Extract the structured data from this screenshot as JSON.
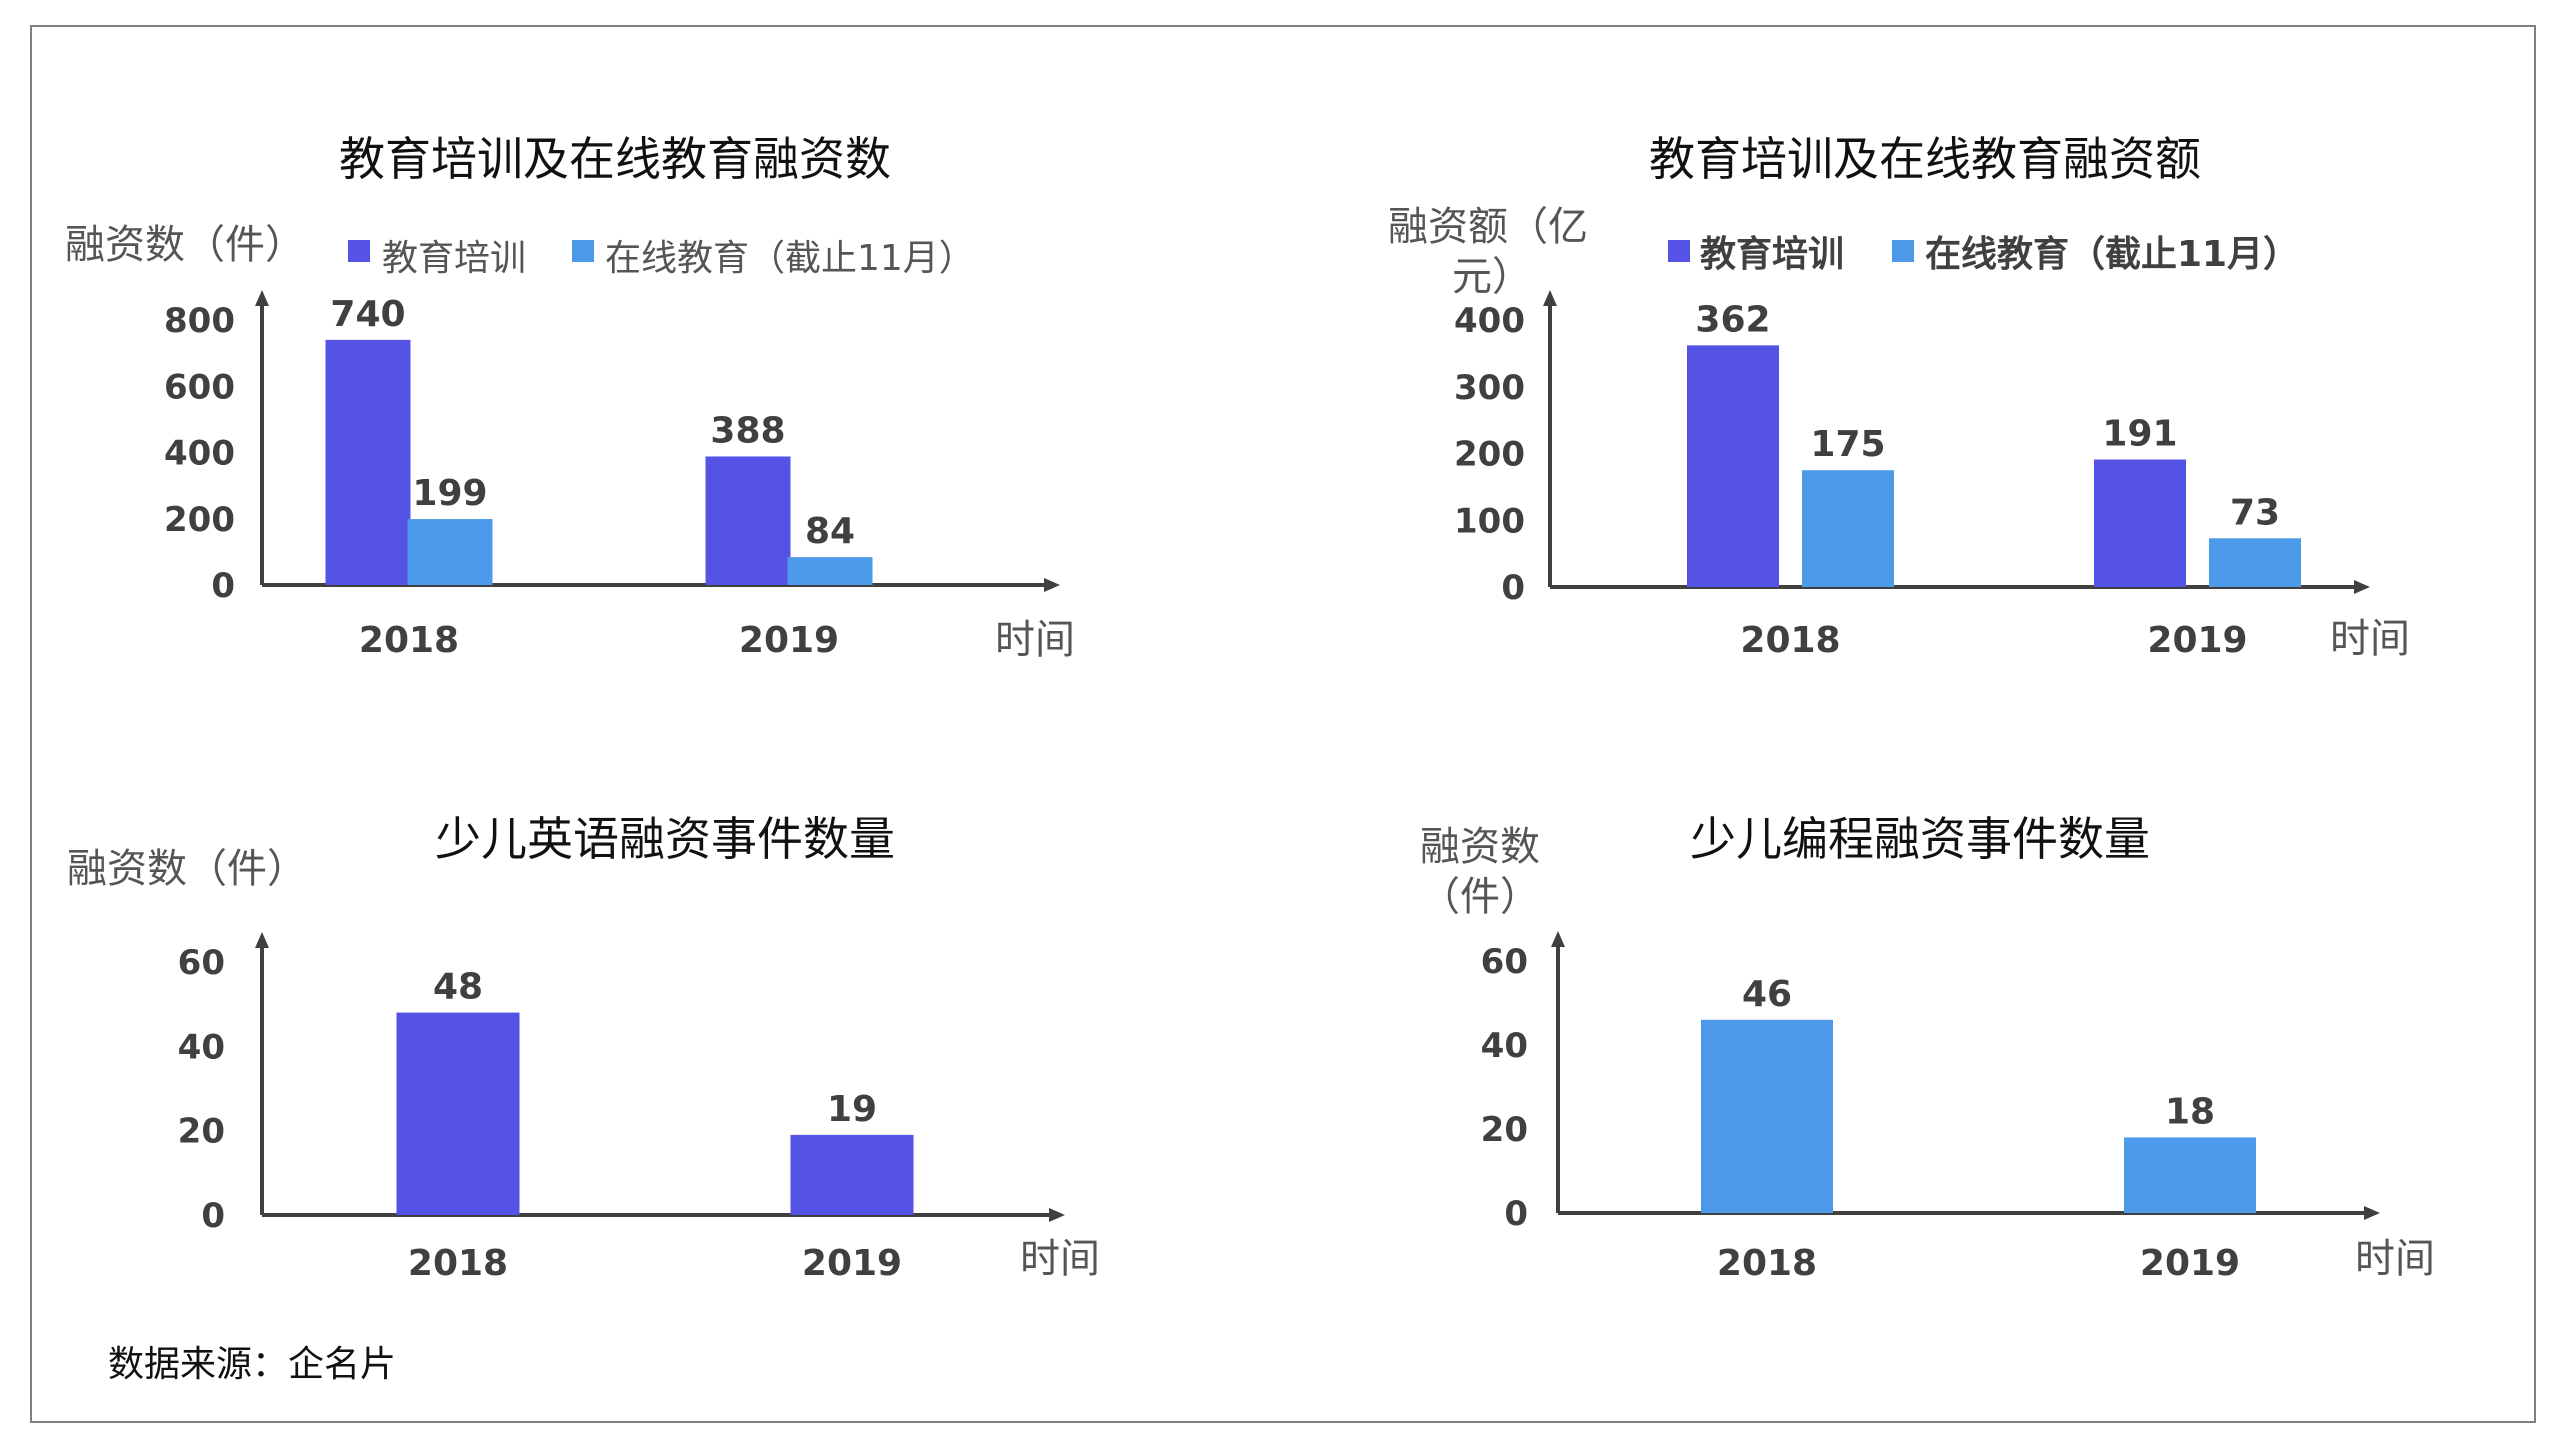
{
  "source_note": "数据来源：企名片",
  "colors": {
    "edu_training": "#5552E6",
    "online_edu": "#4D9AEA",
    "axis": "#404040"
  },
  "chart_data": [
    {
      "type": "bar",
      "title": "教育培训及在线教育融资数",
      "ylabel": "融资数（件）",
      "xlabel": "时间",
      "categories": [
        "2018",
        "2019"
      ],
      "ylim": [
        0,
        800
      ],
      "yticks": [
        0,
        200,
        400,
        600,
        800
      ],
      "legend_position": "top",
      "series": [
        {
          "name": "教育培训",
          "values": [
            740,
            388
          ]
        },
        {
          "name": "在线教育（截止11月）",
          "values": [
            199,
            84
          ]
        }
      ]
    },
    {
      "type": "bar",
      "title": "教育培训及在线教育融资额",
      "ylabel": [
        "融资额（亿",
        "元）"
      ],
      "xlabel": "时间",
      "categories": [
        "2018",
        "2019"
      ],
      "ylim": [
        0,
        400
      ],
      "yticks": [
        0,
        100,
        200,
        300,
        400
      ],
      "legend_position": "top",
      "series": [
        {
          "name": "教育培训",
          "values": [
            362,
            191
          ]
        },
        {
          "name": "在线教育（截止11月）",
          "values": [
            175,
            73
          ]
        }
      ]
    },
    {
      "type": "bar",
      "title": "少儿英语融资事件数量",
      "ylabel": "融资数（件）",
      "xlabel": "时间",
      "categories": [
        "2018",
        "2019"
      ],
      "ylim": [
        0,
        60
      ],
      "yticks": [
        0,
        20,
        40,
        60
      ],
      "series": [
        {
          "values": [
            48,
            19
          ]
        }
      ]
    },
    {
      "type": "bar",
      "title": "少儿编程融资事件数量",
      "ylabel": [
        "融资数",
        "（件）"
      ],
      "xlabel": "时间",
      "categories": [
        "2018",
        "2019"
      ],
      "ylim": [
        0,
        60
      ],
      "yticks": [
        0,
        20,
        40,
        60
      ],
      "series": [
        {
          "values": [
            46,
            18
          ]
        }
      ]
    }
  ]
}
